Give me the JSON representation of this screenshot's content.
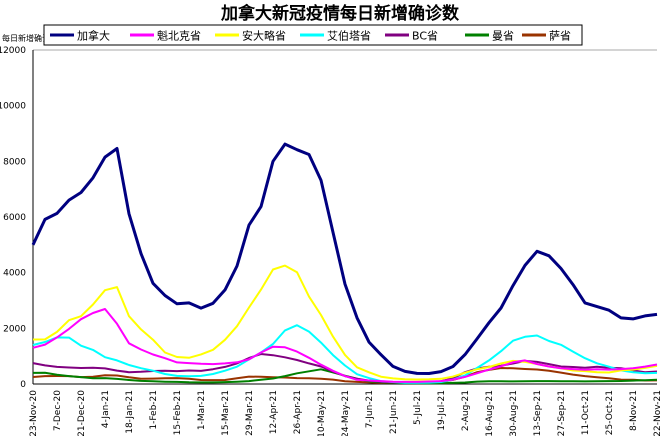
{
  "chart_data": {
    "type": "line",
    "title": "加拿大新冠疫情每日新增确诊数",
    "ylabel": "每日新增确诊",
    "xlabel": "",
    "ylim": [
      0,
      12000
    ],
    "yticks": [
      0,
      2000,
      4000,
      6000,
      8000,
      10000,
      12000
    ],
    "xtick_labels": [
      "23-Nov-20",
      "7-Dec-20",
      "21-Dec-20",
      "4-Jan-21",
      "18-Jan-21",
      "1-Feb-21",
      "15-Feb-21",
      "1-Mar-21",
      "15-Mar-21",
      "29-Mar-21",
      "12-Apr-21",
      "26-Apr-21",
      "10-May-21",
      "24-May-21",
      "7-Jun-21",
      "21-Jun-21",
      "5-Jul-21",
      "19-Jul-21",
      "2-Aug-21",
      "16-Aug-21",
      "30-Aug-21",
      "13-Sep-21",
      "27-Sep-21",
      "11-Oct-21",
      "25-Oct-21",
      "8-Nov-21",
      "22-Nov-21"
    ],
    "x_note": "weekly samples starting 23-Nov-20",
    "legend_position": "top",
    "series": [
      {
        "name": "加拿大",
        "color": "#000080",
        "width": 3,
        "values": [
          5000,
          6200,
          6500,
          6700,
          6600,
          7000,
          8000,
          8800,
          6500,
          4800,
          3500,
          3000,
          2800,
          3000,
          2900,
          3000,
          3300,
          4000,
          5500,
          6500,
          8500,
          9000,
          8300,
          7800,
          7000,
          5500,
          3800,
          2500,
          1500,
          1000,
          600,
          450,
          400,
          400,
          450,
          600,
          1000,
          1600,
          2300,
          2900,
          3600,
          4100,
          4500,
          4500,
          4300,
          3800,
          3000,
          2700,
          2500,
          2300,
          2400,
          2600,
          2500
        ]
      },
      {
        "name": "魁北克省",
        "color": "#ff00ff",
        "width": 2,
        "values": [
          1300,
          1500,
          1700,
          1900,
          2200,
          2500,
          2800,
          2300,
          1500,
          1200,
          1000,
          900,
          800,
          800,
          750,
          700,
          700,
          750,
          900,
          1200,
          1400,
          1300,
          1100,
          900,
          700,
          500,
          300,
          150,
          120,
          100,
          80,
          80,
          80,
          90,
          100,
          150,
          250,
          400,
          550,
          650,
          750,
          800,
          700,
          650,
          600,
          550,
          500,
          500,
          500,
          550,
          600,
          650,
          700
        ]
      },
      {
        "name": "安大略省",
        "color": "#ffff00",
        "width": 2,
        "values": [
          1600,
          1700,
          1900,
          2200,
          2300,
          2800,
          3500,
          3700,
          2500,
          1900,
          1500,
          1100,
          1000,
          1000,
          1100,
          1200,
          1500,
          2000,
          2800,
          3600,
          4300,
          4200,
          3800,
          3000,
          2500,
          1800,
          1100,
          600,
          400,
          250,
          200,
          180,
          170,
          170,
          180,
          250,
          400,
          550,
          650,
          750,
          800,
          750,
          700,
          650,
          600,
          500,
          450,
          400,
          400,
          500,
          550,
          600,
          650
        ]
      },
      {
        "name": "艾伯塔省",
        "color": "#00ffff",
        "width": 2,
        "values": [
          1400,
          1600,
          1700,
          1600,
          1300,
          1200,
          1000,
          900,
          700,
          550,
          450,
          350,
          300,
          300,
          300,
          350,
          450,
          600,
          900,
          1200,
          1500,
          1900,
          2000,
          1800,
          1500,
          1100,
          700,
          350,
          200,
          100,
          70,
          50,
          50,
          50,
          70,
          150,
          300,
          600,
          900,
          1200,
          1500,
          1600,
          1700,
          1600,
          1500,
          1200,
          900,
          700,
          600,
          500,
          450,
          400,
          400
        ]
      },
      {
        "name": "BC省",
        "color": "#800080",
        "width": 2,
        "values": [
          750,
          700,
          650,
          600,
          550,
          550,
          550,
          500,
          450,
          450,
          450,
          450,
          450,
          500,
          500,
          550,
          600,
          700,
          900,
          1100,
          1100,
          1000,
          850,
          700,
          600,
          450,
          300,
          200,
          120,
          80,
          60,
          50,
          50,
          60,
          100,
          200,
          400,
          550,
          650,
          700,
          750,
          800,
          750,
          700,
          650,
          650,
          600,
          600,
          550,
          550,
          500,
          450,
          450
        ]
      },
      {
        "name": "曼省",
        "color": "#008000",
        "width": 2,
        "values": [
          400,
          400,
          350,
          300,
          250,
          200,
          200,
          180,
          150,
          120,
          100,
          80,
          70,
          60,
          60,
          60,
          70,
          80,
          100,
          150,
          200,
          300,
          400,
          450,
          500,
          400,
          300,
          200,
          100,
          60,
          40,
          30,
          30,
          30,
          30,
          40,
          50,
          80,
          100,
          100,
          100,
          100,
          100,
          100,
          100,
          100,
          100,
          100,
          100,
          100,
          120,
          140,
          150
        ]
      },
      {
        "name": "萨省",
        "color": "#993300",
        "width": 2,
        "values": [
          250,
          280,
          300,
          300,
          250,
          250,
          300,
          300,
          250,
          200,
          200,
          200,
          200,
          180,
          150,
          150,
          150,
          200,
          250,
          250,
          250,
          250,
          220,
          200,
          180,
          150,
          100,
          80,
          60,
          40,
          40,
          40,
          50,
          60,
          80,
          150,
          250,
          400,
          500,
          600,
          600,
          550,
          500,
          450,
          400,
          350,
          300,
          250,
          200,
          150,
          150,
          130,
          130
        ]
      }
    ]
  }
}
